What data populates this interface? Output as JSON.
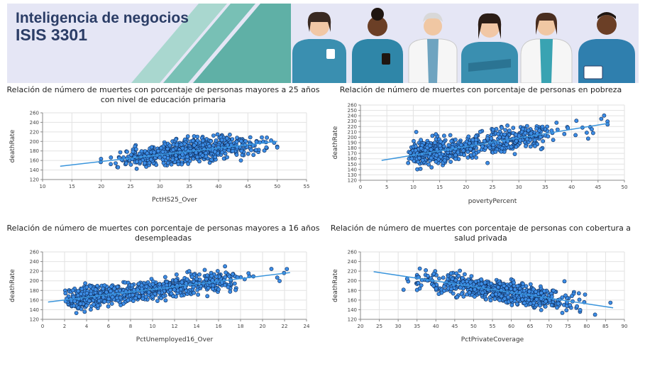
{
  "header": {
    "title_line1": "Inteligencia de negocios",
    "title_line2": "ISIS 3301",
    "colors": {
      "background": "#e5e6f5",
      "title": "#2b3d66",
      "stripe": "#5fb0a6",
      "scrubs": "#3a8fb0"
    }
  },
  "chart_data": [
    {
      "type": "scatter",
      "title": "Relación de número de muertes con porcentaje de personas mayores a 25 años con nivel de educación primaria",
      "xlabel": "PctHS25_Over",
      "ylabel": "deathRate",
      "xlim": [
        10,
        55
      ],
      "ylim": [
        120,
        260
      ],
      "xticks": [
        10,
        15,
        20,
        25,
        30,
        35,
        40,
        45,
        50,
        55
      ],
      "yticks": [
        120,
        140,
        160,
        180,
        200,
        220,
        240,
        260
      ],
      "trend": {
        "x": [
          13,
          50
        ],
        "y": [
          148,
          200
        ]
      },
      "point_color": "#3c8de6",
      "line_color": "#3a95dc",
      "grid": true
    },
    {
      "type": "scatter",
      "title": "Relación de número de muertes con porcentaje de personas en pobreza",
      "xlabel": "povertyPercent",
      "ylabel": "deathRate",
      "xlim": [
        0,
        50
      ],
      "ylim": [
        120,
        260
      ],
      "xticks": [
        0,
        5,
        10,
        15,
        20,
        25,
        30,
        35,
        40,
        45,
        50
      ],
      "yticks": [
        120,
        130,
        140,
        150,
        160,
        170,
        180,
        190,
        200,
        210,
        220,
        230,
        240,
        250,
        260
      ],
      "trend": {
        "x": [
          4,
          47
        ],
        "y": [
          157,
          226
        ]
      },
      "point_color": "#3c8de6",
      "line_color": "#3a95dc",
      "grid": true
    },
    {
      "type": "scatter",
      "title": "Relación de número de muertes con porcentaje de personas mayores a 16 años desempleadas",
      "xlabel": "PctUnemployed16_Over",
      "ylabel": "deathRate",
      "xlim": [
        0,
        24
      ],
      "ylim": [
        120,
        260
      ],
      "xticks": [
        0,
        2,
        4,
        6,
        8,
        10,
        12,
        14,
        16,
        18,
        20,
        22,
        24
      ],
      "yticks": [
        120,
        140,
        160,
        180,
        200,
        220,
        240,
        260
      ],
      "trend": {
        "x": [
          0.5,
          22.5
        ],
        "y": [
          156,
          217
        ]
      },
      "point_color": "#3c8de6",
      "line_color": "#3a95dc",
      "grid": true
    },
    {
      "type": "scatter",
      "title": "Relación de número de muertes con porcentaje de personas con cobertura a salud privada",
      "xlabel": "PctPrivateCoverage",
      "ylabel": "deathRate",
      "xlim": [
        20,
        90
      ],
      "ylim": [
        120,
        260
      ],
      "xticks": [
        20,
        25,
        30,
        35,
        40,
        45,
        50,
        55,
        60,
        65,
        70,
        75,
        80,
        85,
        90
      ],
      "yticks": [
        120,
        140,
        160,
        180,
        200,
        220,
        240,
        260
      ],
      "trend": {
        "x": [
          23.5,
          87
        ],
        "y": [
          219,
          144
        ]
      },
      "point_color": "#3c8de6",
      "line_color": "#3a95dc",
      "grid": true
    }
  ]
}
